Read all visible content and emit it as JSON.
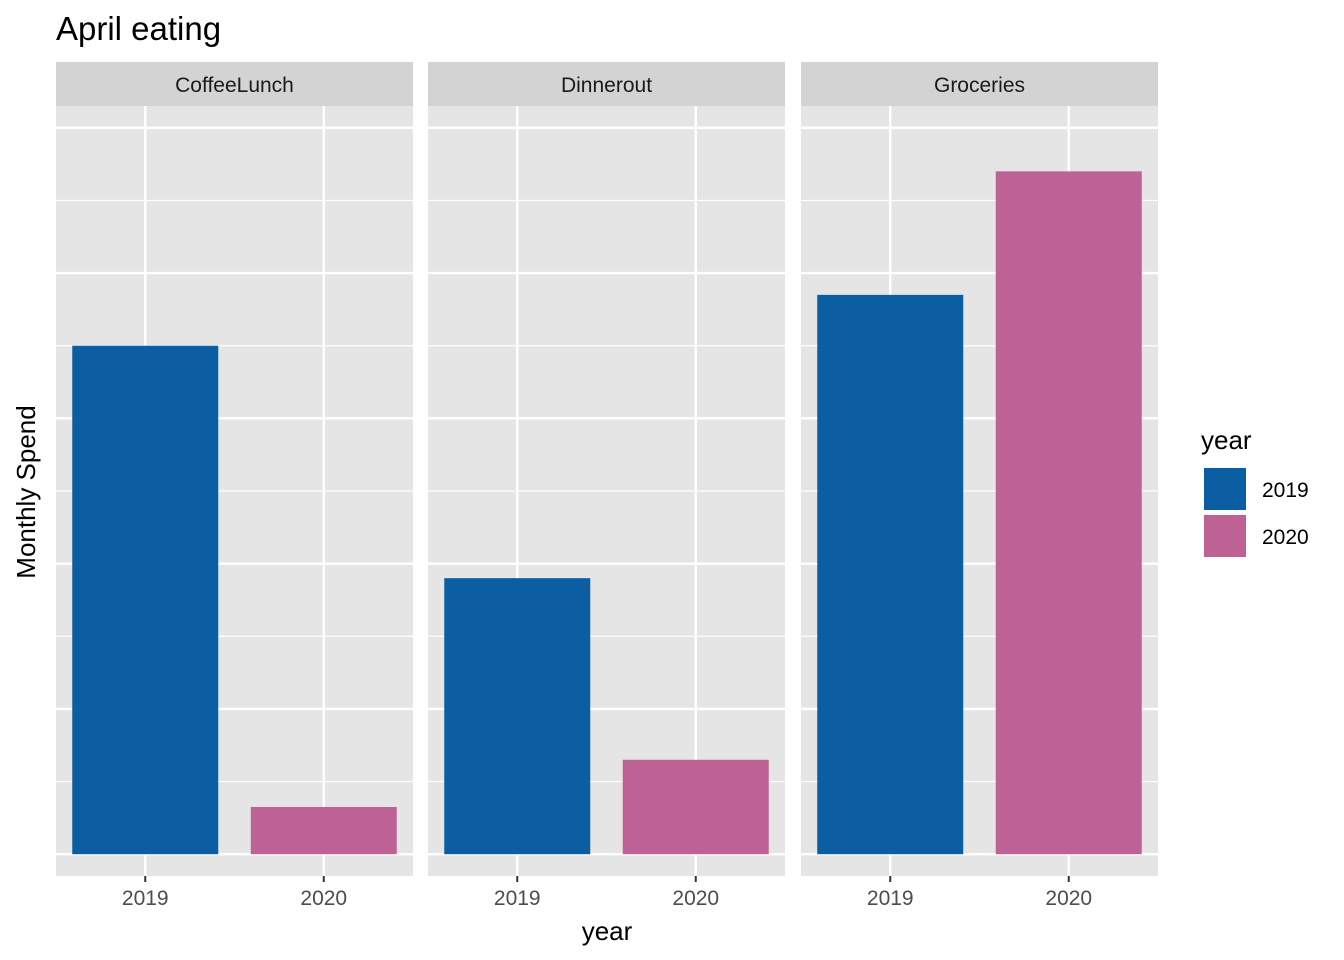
{
  "chart_data": {
    "type": "bar",
    "title": "April eating",
    "xlabel": "year",
    "ylabel": "Monthly Spend",
    "y_tick_labels": "none",
    "ylim": [
      -0.03,
      1.03
    ],
    "grid": true,
    "facet_variable": "category",
    "facets": [
      {
        "label": "CoffeeLunch",
        "categories": [
          "2019",
          "2020"
        ],
        "values": [
          0.7,
          0.065
        ]
      },
      {
        "label": "Dinnerout",
        "categories": [
          "2019",
          "2020"
        ],
        "values": [
          0.38,
          0.13
        ]
      },
      {
        "label": "Groceries",
        "categories": [
          "2019",
          "2020"
        ],
        "values": [
          0.77,
          0.94
        ]
      }
    ],
    "legend": {
      "title": "year",
      "placement": "right",
      "entries": [
        {
          "label": "2019",
          "color": "#0b5ea1"
        },
        {
          "label": "2020",
          "color": "#be6195"
        }
      ]
    }
  },
  "colors": {
    "panel_background": "#e5e5e5",
    "strip_background": "#d3d3d3",
    "grid_line": "#ffffff"
  }
}
